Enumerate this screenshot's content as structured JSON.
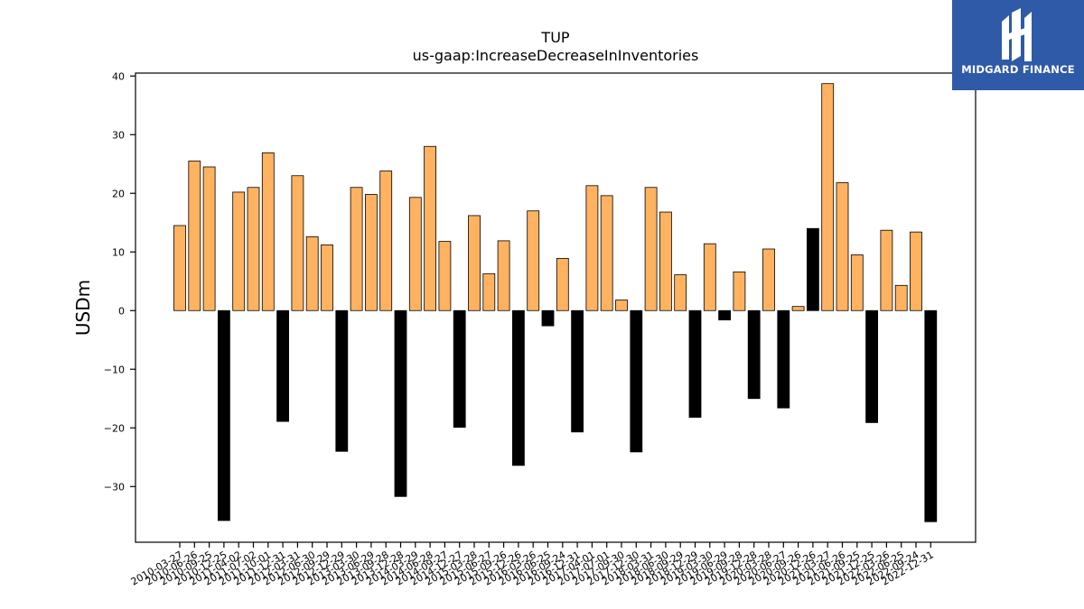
{
  "logo": {
    "text": "MIDGARD FINANCE",
    "bg_color": "#2f5aa8"
  },
  "chart_data": {
    "type": "bar",
    "title": "TUP",
    "subtitle": "us-gaap:IncreaseDecreaseInInventories",
    "ylabel": "USDm",
    "xlabel": "",
    "ylim": [
      -39.5,
      40.5
    ],
    "yticks": [
      -30,
      -20,
      -10,
      0,
      10,
      20,
      30,
      40
    ],
    "positive_color": "#ffb260",
    "negative_color": "#000000",
    "highlight_categories": [
      "2020-12-26"
    ],
    "categories": [
      "2010-03-27",
      "2010-06-26",
      "2010-09-25",
      "2010-12-25",
      "2011-04-02",
      "2011-07-02",
      "2011-10-01",
      "2011-12-31",
      "2012-03-31",
      "2012-06-30",
      "2012-09-29",
      "2012-12-29",
      "2013-03-30",
      "2013-06-29",
      "2013-09-28",
      "2013-12-28",
      "2014-03-29",
      "2014-06-28",
      "2014-09-27",
      "2014-12-27",
      "2015-03-28",
      "2015-06-27",
      "2015-09-26",
      "2015-12-26",
      "2016-03-26",
      "2016-06-25",
      "2016-09-24",
      "2016-12-31",
      "2017-04-01",
      "2017-07-01",
      "2017-09-30",
      "2017-12-30",
      "2018-03-31",
      "2018-06-30",
      "2018-09-29",
      "2018-12-29",
      "2019-03-30",
      "2019-06-29",
      "2019-09-28",
      "2019-12-28",
      "2020-03-28",
      "2020-06-27",
      "2020-09-26",
      "2020-12-26",
      "2021-03-27",
      "2021-06-26",
      "2021-09-25",
      "2021-12-25",
      "2022-03-26",
      "2022-06-25",
      "2022-09-24",
      "2022-12-31"
    ],
    "values": [
      14.5,
      25.5,
      24.5,
      -35.8,
      20.2,
      21.0,
      26.9,
      -18.9,
      23.0,
      12.6,
      11.2,
      -24.0,
      21.0,
      19.8,
      23.8,
      -31.7,
      19.3,
      28.0,
      11.8,
      -19.9,
      16.2,
      6.3,
      11.9,
      -26.4,
      17.0,
      -2.6,
      8.9,
      -20.7,
      21.3,
      19.6,
      1.8,
      -24.1,
      21.0,
      16.8,
      6.1,
      -18.2,
      11.4,
      -1.6,
      6.6,
      -15.0,
      10.5,
      -16.6,
      0.7,
      14.0,
      38.7,
      21.8,
      9.5,
      -19.1,
      13.7,
      4.3,
      13.4,
      -36.0
    ]
  }
}
